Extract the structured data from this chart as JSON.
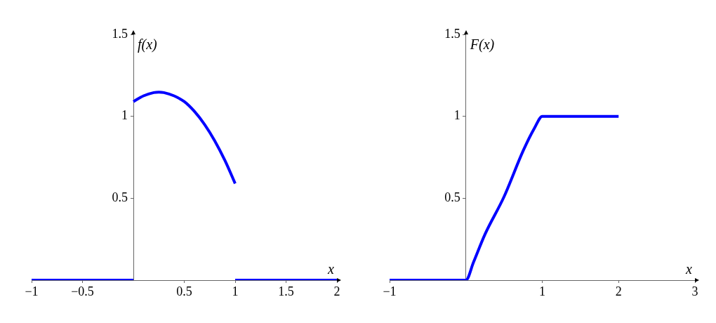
{
  "chart_data": [
    {
      "type": "line",
      "xlabel": "x",
      "ylabel": "f(x)",
      "xlim": [
        -1,
        2
      ],
      "ylim": [
        0,
        1.5
      ],
      "xticks": [
        -1,
        -0.5,
        0.5,
        1,
        1.5,
        2
      ],
      "yticks": [
        0.5,
        1,
        1.5
      ],
      "grid": false,
      "legend": false,
      "marker": "none",
      "line_style": "solid",
      "series": [
        {
          "color": "#0000ff",
          "x": [
            -1,
            0
          ],
          "values": [
            0,
            0
          ]
        },
        {
          "color": "#0000ff",
          "x": [
            0,
            0.1,
            0.2,
            0.25,
            0.3,
            0.4,
            0.5,
            0.6,
            0.7,
            0.8,
            0.9,
            1
          ],
          "values": [
            1.09,
            1.125,
            1.145,
            1.148,
            1.145,
            1.125,
            1.09,
            1.03,
            0.95,
            0.85,
            0.73,
            0.59
          ]
        },
        {
          "color": "#0000ff",
          "x": [
            1,
            2
          ],
          "values": [
            0,
            0
          ]
        }
      ]
    },
    {
      "type": "line",
      "xlabel": "x",
      "ylabel": "F(x)",
      "xlim": [
        -1,
        3
      ],
      "ylim": [
        0,
        1.5
      ],
      "xticks": [
        -1,
        1,
        2,
        3
      ],
      "yticks": [
        0.5,
        1,
        1.5
      ],
      "grid": false,
      "legend": false,
      "marker": "none",
      "line_style": "solid",
      "series": [
        {
          "color": "#0000ff",
          "x": [
            -1,
            0,
            0.1,
            0.25,
            0.5,
            0.75,
            0.9,
            1,
            2
          ],
          "values": [
            0,
            0,
            0.11,
            0.28,
            0.51,
            0.79,
            0.93,
            1,
            1
          ]
        }
      ]
    }
  ]
}
